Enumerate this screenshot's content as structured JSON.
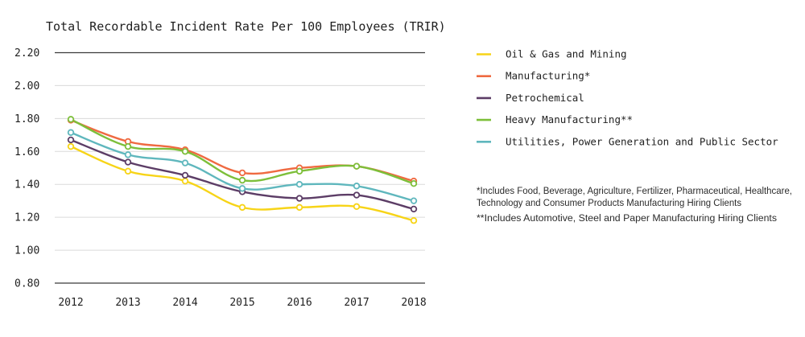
{
  "chart_data": {
    "type": "line",
    "title": "Total Recordable Incident Rate Per 100 Employees (TRIR)",
    "xlabel": "",
    "ylabel": "",
    "categories": [
      "2012",
      "2013",
      "2014",
      "2015",
      "2016",
      "2017",
      "2018"
    ],
    "ylim": [
      0.8,
      2.2
    ],
    "yticks": [
      "2.20",
      "2.00",
      "1.80",
      "1.60",
      "1.40",
      "1.20",
      "1.00",
      "0.80"
    ],
    "ytick_values": [
      2.2,
      2.0,
      1.8,
      1.6,
      1.4,
      1.2,
      1.0,
      0.8
    ],
    "grid": true,
    "legend_position": "right",
    "series": [
      {
        "name": "Oil & Gas and Mining",
        "color": "#f7d417",
        "values": [
          1.63,
          1.48,
          1.42,
          1.26,
          1.26,
          1.265,
          1.18
        ]
      },
      {
        "name": "Manufacturing*",
        "color": "#ef6a41",
        "values": [
          1.79,
          1.66,
          1.61,
          1.47,
          1.5,
          1.51,
          1.42
        ]
      },
      {
        "name": "Petrochemical",
        "color": "#5c3d66",
        "values": [
          1.67,
          1.535,
          1.455,
          1.355,
          1.315,
          1.335,
          1.25
        ]
      },
      {
        "name": "Heavy Manufacturing**",
        "color": "#7dbf3a",
        "values": [
          1.795,
          1.63,
          1.6,
          1.425,
          1.48,
          1.51,
          1.405
        ]
      },
      {
        "name": "Utilities, Power Generation and Public Sector",
        "color": "#5fb7bd",
        "values": [
          1.715,
          1.58,
          1.53,
          1.375,
          1.4,
          1.39,
          1.3
        ]
      }
    ],
    "footnotes": [
      "*Includes Food, Beverage, Agriculture, Fertilizer, Pharmaceutical, Healthcare,",
      "Technology and Consumer Products Manufacturing Hiring Clients",
      "**Includes Automotive, Steel and Paper Manufacturing Hiring Clients"
    ]
  }
}
